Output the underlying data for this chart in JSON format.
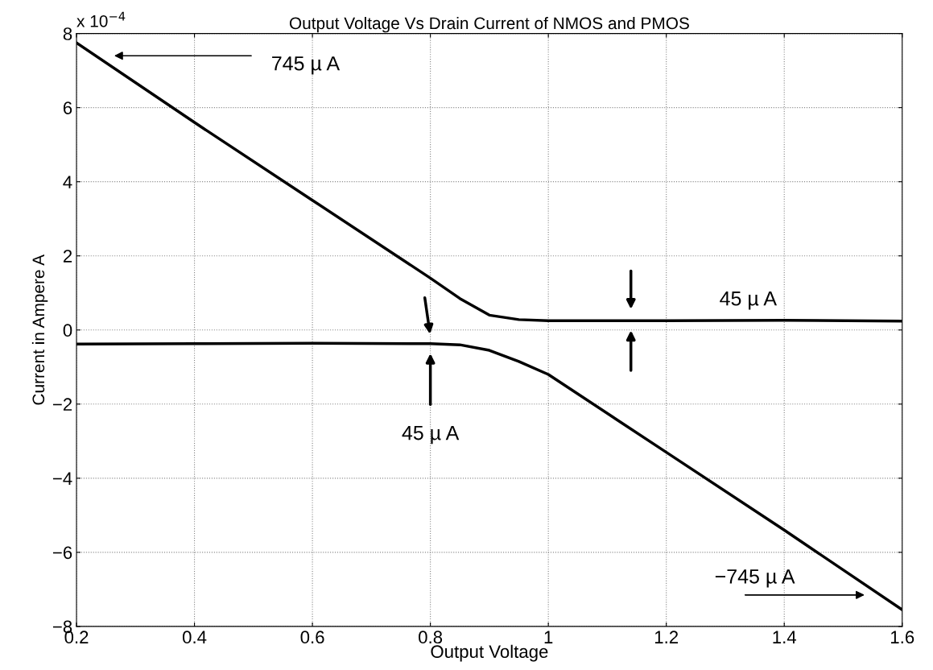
{
  "chart_data": {
    "type": "line",
    "title": "Output Voltage Vs Drain Current of NMOS and PMOS",
    "xlabel": "Output Voltage",
    "ylabel": "Current in Ampere A",
    "series": [
      {
        "color": "#000000",
        "x": [
          0.2,
          0.4,
          0.6,
          0.8,
          0.85,
          0.9,
          0.95,
          1.0,
          1.2,
          1.4,
          1.6
        ],
        "values": [
          7.75,
          5.6,
          3.5,
          1.4,
          0.85,
          0.4,
          0.28,
          0.25,
          0.25,
          0.26,
          0.24
        ]
      },
      {
        "color": "#000000",
        "x": [
          0.2,
          0.4,
          0.6,
          0.8,
          0.85,
          0.9,
          0.95,
          1.0,
          1.2,
          1.4,
          1.6
        ],
        "values": [
          -0.38,
          -0.37,
          -0.36,
          -0.37,
          -0.4,
          -0.55,
          -0.85,
          -1.2,
          -3.3,
          -5.4,
          -7.55
        ]
      }
    ],
    "xlim": [
      0.2,
      1.6
    ],
    "xticks": [
      0.2,
      0.4,
      0.6,
      0.8,
      {
        "value": 1,
        "label": "1"
      },
      1.2,
      1.4,
      1.6
    ],
    "ylim": [
      -8,
      8
    ],
    "yticks": [
      {
        "value": -8,
        "label": "−8"
      },
      {
        "value": -6,
        "label": "−6"
      },
      {
        "value": -4,
        "label": "−4"
      },
      {
        "value": -2,
        "label": "−2"
      },
      0,
      2,
      4,
      6,
      8
    ],
    "grid": true,
    "line_style": "solid",
    "marker": "none",
    "annotations": [
      "x 10$^{−4}$",
      "745 µ A",
      "45 µ A",
      "45 µ A",
      "−745 µ A"
    ]
  }
}
